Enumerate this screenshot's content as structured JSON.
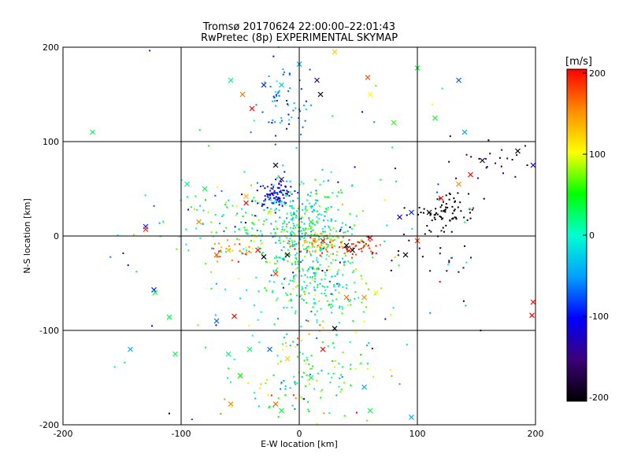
{
  "chart_data": {
    "type": "scatter",
    "title": "Tromsø 20170624 22:00:00–22:01:43",
    "subtitle": "RwPretec (8p) EXPERIMENTAL SKYMAP",
    "xlabel": "E-W location [km]",
    "ylabel": "N-S location [km]",
    "xlim": [
      -200,
      200
    ],
    "ylim": [
      -200,
      200
    ],
    "xticks": [
      "-200",
      "-100",
      "0",
      "100",
      "200"
    ],
    "yticks": [
      "-200",
      "-100",
      "0",
      "100",
      "200"
    ],
    "grid": true,
    "colorbar": {
      "label": "[m/s]",
      "range": [
        -200,
        200
      ],
      "ticks": [
        "200",
        "100",
        "0",
        "-100",
        "-200"
      ],
      "colors": [
        "#000000",
        "#3c0078",
        "#0000ff",
        "#00a0ff",
        "#00ffd0",
        "#00ff00",
        "#ffff00",
        "#ff8c00",
        "#ff0000"
      ]
    },
    "series": [
      {
        "marker": "dot",
        "clusters": [
          {
            "cx": 0,
            "cy": 5,
            "sx": 22,
            "sy": 28,
            "n": 420,
            "v": 10,
            "dv": 45
          },
          {
            "cx": -20,
            "cy": 45,
            "sx": 8,
            "sy": 7,
            "n": 90,
            "v": -110,
            "dv": 25
          },
          {
            "cx": 15,
            "cy": -8,
            "sx": 12,
            "sy": 6,
            "n": 80,
            "v": 130,
            "dv": 35
          },
          {
            "cx": 50,
            "cy": -12,
            "sx": 9,
            "sy": 5,
            "n": 40,
            "v": 190,
            "dv": 10
          },
          {
            "cx": 125,
            "cy": 25,
            "sx": 12,
            "sy": 12,
            "n": 75,
            "v": -200,
            "dv": 5
          },
          {
            "cx": 20,
            "cy": -60,
            "sx": 22,
            "sy": 22,
            "n": 160,
            "v": 20,
            "dv": 40
          },
          {
            "cx": 5,
            "cy": -150,
            "sx": 28,
            "sy": 25,
            "n": 140,
            "v": 40,
            "dv": 70
          },
          {
            "cx": -15,
            "cy": 140,
            "sx": 12,
            "sy": 18,
            "n": 60,
            "v": -70,
            "dv": 30
          },
          {
            "cx": -50,
            "cy": -15,
            "sx": 12,
            "sy": 5,
            "n": 30,
            "v": 150,
            "dv": 30
          },
          {
            "cx": -70,
            "cy": 20,
            "sx": 30,
            "sy": 20,
            "n": 60,
            "v": 20,
            "dv": 50
          },
          {
            "cx": 100,
            "cy": -20,
            "sx": 30,
            "sy": 15,
            "n": 25,
            "v": -170,
            "dv": 20
          },
          {
            "cx": 170,
            "cy": 80,
            "sx": 20,
            "sy": 12,
            "n": 25,
            "v": -170,
            "dv": 20
          },
          {
            "cx": 0,
            "cy": 0,
            "sx": 90,
            "sy": 90,
            "n": 110,
            "v": 0,
            "dv": 90
          }
        ],
        "points": [
          {
            "x": -110,
            "y": -188,
            "v": -200
          },
          {
            "x": 103,
            "y": 25,
            "v": -200
          },
          {
            "x": 120,
            "y": 20,
            "v": -200
          }
        ]
      },
      {
        "marker": "cross",
        "points": [
          {
            "x": -175,
            "y": 110,
            "v": 30
          },
          {
            "x": -130,
            "y": 10,
            "v": -90
          },
          {
            "x": -130,
            "y": 7,
            "v": 180
          },
          {
            "x": -123,
            "y": -57,
            "v": -90
          },
          {
            "x": -122,
            "y": -60,
            "v": 30
          },
          {
            "x": -110,
            "y": -86,
            "v": 30
          },
          {
            "x": -143,
            "y": -120,
            "v": -40
          },
          {
            "x": -105,
            "y": -125,
            "v": 30
          },
          {
            "x": -85,
            "y": 15,
            "v": 150
          },
          {
            "x": -70,
            "y": -20,
            "v": 170
          },
          {
            "x": -60,
            "y": -15,
            "v": 130
          },
          {
            "x": -55,
            "y": -85,
            "v": 200
          },
          {
            "x": -70,
            "y": -90,
            "v": -70
          },
          {
            "x": -60,
            "y": -125,
            "v": 20
          },
          {
            "x": -50,
            "y": -148,
            "v": 50
          },
          {
            "x": -42,
            "y": -120,
            "v": 30
          },
          {
            "x": -58,
            "y": -178,
            "v": 150
          },
          {
            "x": -35,
            "y": -15,
            "v": 200
          },
          {
            "x": -30,
            "y": -22,
            "v": -200
          },
          {
            "x": -20,
            "y": -40,
            "v": 180
          },
          {
            "x": -25,
            "y": -120,
            "v": -70
          },
          {
            "x": -10,
            "y": -130,
            "v": 120
          },
          {
            "x": 10,
            "y": -150,
            "v": 30
          },
          {
            "x": -20,
            "y": -178,
            "v": 160
          },
          {
            "x": -15,
            "y": -185,
            "v": 30
          },
          {
            "x": 20,
            "y": -120,
            "v": 200
          },
          {
            "x": 30,
            "y": -98,
            "v": -200
          },
          {
            "x": 55,
            "y": -160,
            "v": -40
          },
          {
            "x": 60,
            "y": -185,
            "v": 30
          },
          {
            "x": 95,
            "y": -192,
            "v": -40
          },
          {
            "x": -58,
            "y": 165,
            "v": 20
          },
          {
            "x": -48,
            "y": 150,
            "v": 160
          },
          {
            "x": -40,
            "y": 135,
            "v": 200
          },
          {
            "x": -30,
            "y": 160,
            "v": -90
          },
          {
            "x": -15,
            "y": 160,
            "v": -30
          },
          {
            "x": 0,
            "y": 182,
            "v": -40
          },
          {
            "x": 15,
            "y": 165,
            "v": -150
          },
          {
            "x": 18,
            "y": 150,
            "v": -200
          },
          {
            "x": 30,
            "y": 195,
            "v": 120
          },
          {
            "x": 58,
            "y": 168,
            "v": 170
          },
          {
            "x": 60,
            "y": 150,
            "v": 100
          },
          {
            "x": 80,
            "y": 120,
            "v": 60
          },
          {
            "x": 100,
            "y": 178,
            "v": 40
          },
          {
            "x": 115,
            "y": 125,
            "v": 40
          },
          {
            "x": 135,
            "y": 165,
            "v": -70
          },
          {
            "x": 140,
            "y": 110,
            "v": -50
          },
          {
            "x": -20,
            "y": 75,
            "v": -200
          },
          {
            "x": -15,
            "y": 60,
            "v": -150
          },
          {
            "x": -45,
            "y": 42,
            "v": 130
          },
          {
            "x": -45,
            "y": 35,
            "v": 210
          },
          {
            "x": -80,
            "y": 50,
            "v": 30
          },
          {
            "x": -95,
            "y": 55,
            "v": 20
          },
          {
            "x": 40,
            "y": -65,
            "v": 160
          },
          {
            "x": 55,
            "y": -65,
            "v": 150
          },
          {
            "x": 65,
            "y": -60,
            "v": 100
          },
          {
            "x": 40,
            "y": -10,
            "v": -200
          },
          {
            "x": 100,
            "y": -5,
            "v": 180
          },
          {
            "x": 90,
            "y": -20,
            "v": -200
          },
          {
            "x": 85,
            "y": 20,
            "v": -120
          },
          {
            "x": 95,
            "y": 25,
            "v": -90
          },
          {
            "x": 110,
            "y": 25,
            "v": -200
          },
          {
            "x": 120,
            "y": 40,
            "v": 200
          },
          {
            "x": 135,
            "y": 55,
            "v": 150
          },
          {
            "x": 145,
            "y": 65,
            "v": 200
          },
          {
            "x": 155,
            "y": 80,
            "v": -170
          },
          {
            "x": 185,
            "y": 90,
            "v": -200
          },
          {
            "x": 198,
            "y": 75,
            "v": -120
          },
          {
            "x": 198,
            "y": -70,
            "v": 200
          },
          {
            "x": 197,
            "y": -84,
            "v": 200
          },
          {
            "x": 60,
            "y": -2,
            "v": 200
          },
          {
            "x": 45,
            "y": -15,
            "v": -200
          },
          {
            "x": 20,
            "y": -5,
            "v": 200
          },
          {
            "x": -10,
            "y": -20,
            "v": -200
          },
          {
            "x": 10,
            "y": 15,
            "v": 40
          },
          {
            "x": -25,
            "y": 25,
            "v": 100
          }
        ]
      }
    ]
  }
}
